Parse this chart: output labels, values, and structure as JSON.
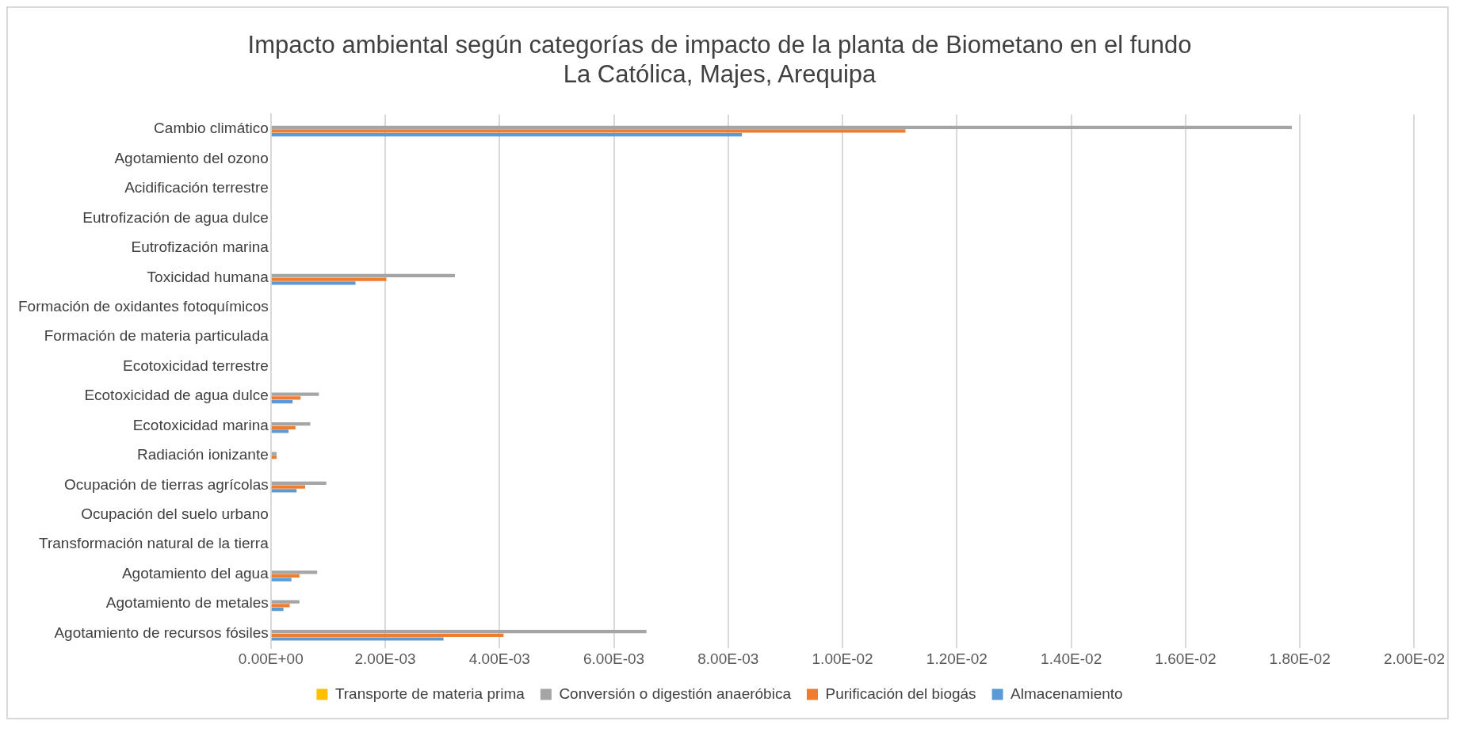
{
  "chart_data": {
    "type": "bar",
    "orientation": "horizontal",
    "title": [
      "Impacto ambiental según categorías de impacto de la planta de Biometano en el fundo",
      "La Católica, Majes, Arequipa"
    ],
    "categories": [
      "Cambio climático",
      "Agotamiento del ozono",
      "Acidificación terrestre",
      "Eutrofización de agua dulce",
      "Eutrofización marina",
      "Toxicidad humana",
      "Formación de oxidantes fotoquímicos",
      "Formación de materia particulada",
      "Ecotoxicidad terrestre",
      "Ecotoxicidad de agua dulce",
      "Ecotoxicidad marina",
      "Radiación ionizante",
      "Ocupación de tierras agrícolas",
      "Ocupación del suelo urbano",
      "Transformación natural de la tierra",
      "Agotamiento del agua",
      "Agotamiento de metales",
      "Agotamiento de recursos fósiles"
    ],
    "series": [
      {
        "name": "Transporte de materia prima",
        "color": "#ffc000",
        "values": [
          0,
          0,
          0,
          0,
          0,
          0,
          0,
          0,
          0,
          0,
          0,
          0,
          0,
          0,
          0,
          0,
          0,
          0
        ]
      },
      {
        "name": "Conversión o digestión anaeróbica",
        "color": "#a5a5a5",
        "values": [
          0.01786,
          0,
          null,
          0,
          0,
          0.00322,
          null,
          0,
          0,
          0.00084,
          0.00069,
          0.0001,
          0.00097,
          null,
          0,
          0.00081,
          0.0005,
          0.00657
        ]
      },
      {
        "name": "Purificación del biogás",
        "color": "#ed7d31",
        "values": [
          0.0111,
          0,
          0,
          0,
          0,
          0.00202,
          null,
          0,
          0,
          0.00052,
          0.00043,
          0.0001,
          0.0006,
          0,
          0,
          0.0005,
          0.00033,
          0.00407
        ]
      },
      {
        "name": "Almacenamiento",
        "color": "#5b9bd5",
        "values": [
          0.00824,
          0,
          0,
          0,
          0,
          0.00148,
          0,
          0,
          0,
          0.00038,
          0.00031,
          0,
          0.00045,
          0,
          0,
          0.00036,
          0.00022,
          0.00302
        ]
      }
    ],
    "xlim": [
      0,
      0.02
    ],
    "xticks": [
      {
        "value": 0,
        "label": "0.00E+00"
      },
      {
        "value": 0.002,
        "label": "2.00E-03"
      },
      {
        "value": 0.004,
        "label": "4.00E-03"
      },
      {
        "value": 0.006,
        "label": "6.00E-03"
      },
      {
        "value": 0.008,
        "label": "8.00E-03"
      },
      {
        "value": 0.01,
        "label": "1.00E-02"
      },
      {
        "value": 0.012,
        "label": "1.20E-02"
      },
      {
        "value": 0.014,
        "label": "1.40E-02"
      },
      {
        "value": 0.016,
        "label": "1.60E-02"
      },
      {
        "value": 0.018,
        "label": "1.80E-02"
      },
      {
        "value": 0.02,
        "label": "2.00E-02"
      }
    ],
    "grid": "x",
    "legend": "bottom"
  }
}
